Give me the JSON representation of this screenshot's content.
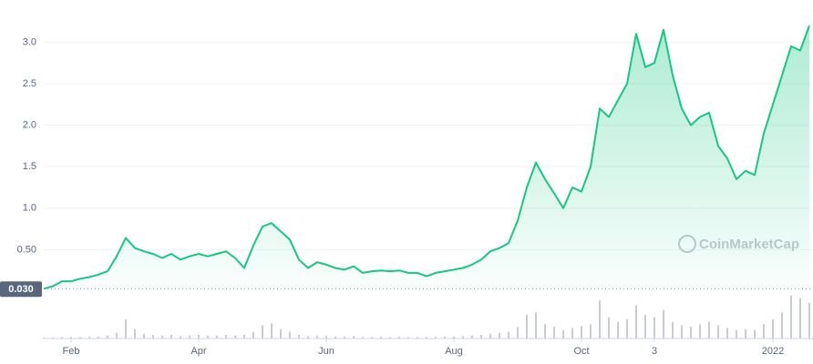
{
  "chart_data": {
    "type": "area",
    "categories": [
      null,
      null,
      null,
      "Feb",
      null,
      null,
      null,
      null,
      null,
      null,
      null,
      null,
      null,
      null,
      null,
      null,
      null,
      "Apr",
      null,
      null,
      null,
      null,
      null,
      null,
      null,
      null,
      null,
      null,
      null,
      null,
      null,
      "Jun",
      null,
      null,
      null,
      null,
      null,
      null,
      null,
      null,
      null,
      null,
      null,
      null,
      null,
      "Aug",
      null,
      null,
      null,
      null,
      null,
      null,
      null,
      null,
      null,
      null,
      null,
      null,
      null,
      "Oct",
      null,
      null,
      null,
      null,
      null,
      null,
      null,
      "3",
      null,
      null,
      null,
      null,
      null,
      null,
      null,
      null,
      null,
      null,
      null,
      null,
      "2022",
      null,
      null,
      null,
      null
    ],
    "series": [
      {
        "color": "#16c784",
        "values": [
          0.03,
          0.06,
          0.12,
          0.12,
          0.15,
          0.17,
          0.2,
          0.24,
          0.42,
          0.64,
          0.52,
          0.48,
          0.45,
          0.4,
          0.45,
          0.38,
          0.42,
          0.45,
          0.42,
          0.45,
          0.48,
          0.4,
          0.28,
          0.55,
          0.78,
          0.82,
          0.72,
          0.62,
          0.38,
          0.28,
          0.35,
          0.32,
          0.28,
          0.26,
          0.3,
          0.22,
          0.24,
          0.25,
          0.24,
          0.25,
          0.22,
          0.22,
          0.18,
          0.22,
          0.24,
          0.26,
          0.28,
          0.32,
          0.38,
          0.48,
          0.52,
          0.58,
          0.85,
          1.25,
          1.55,
          1.35,
          1.18,
          1.0,
          1.25,
          1.2,
          1.5,
          2.2,
          2.1,
          2.3,
          2.5,
          3.1,
          2.7,
          2.75,
          3.15,
          2.6,
          2.2,
          2.0,
          2.1,
          2.15,
          1.75,
          1.6,
          1.35,
          1.45,
          1.4,
          1.9,
          2.25,
          2.6,
          2.95,
          2.9,
          3.2
        ]
      }
    ],
    "volume": {
      "color": "#c9ccd3",
      "values": [
        2,
        2,
        3,
        3,
        3,
        4,
        4,
        6,
        12,
        40,
        20,
        10,
        8,
        6,
        8,
        5,
        6,
        8,
        6,
        6,
        8,
        6,
        8,
        14,
        28,
        32,
        20,
        14,
        8,
        5,
        6,
        6,
        4,
        4,
        5,
        3,
        3,
        4,
        3,
        4,
        3,
        3,
        3,
        4,
        4,
        4,
        5,
        6,
        8,
        10,
        12,
        14,
        24,
        50,
        55,
        30,
        25,
        18,
        22,
        26,
        30,
        80,
        45,
        35,
        40,
        70,
        50,
        45,
        60,
        35,
        28,
        25,
        30,
        35,
        28,
        22,
        18,
        20,
        18,
        30,
        40,
        55,
        90,
        85,
        75
      ]
    },
    "ylim": [
      0,
      3.3
    ],
    "yticks": [
      {
        "value": 0.5,
        "label": "0.50"
      },
      {
        "value": 1,
        "label": "1.0"
      },
      {
        "value": 1.5,
        "label": "1.5"
      },
      {
        "value": 2,
        "label": "2.0"
      },
      {
        "value": 2.5,
        "label": "2.5"
      },
      {
        "value": 3,
        "label": "3.0"
      }
    ],
    "start_price": {
      "value": 0.03,
      "label": "0.030"
    },
    "watermark": "CoinMarketCap",
    "grid": true
  }
}
